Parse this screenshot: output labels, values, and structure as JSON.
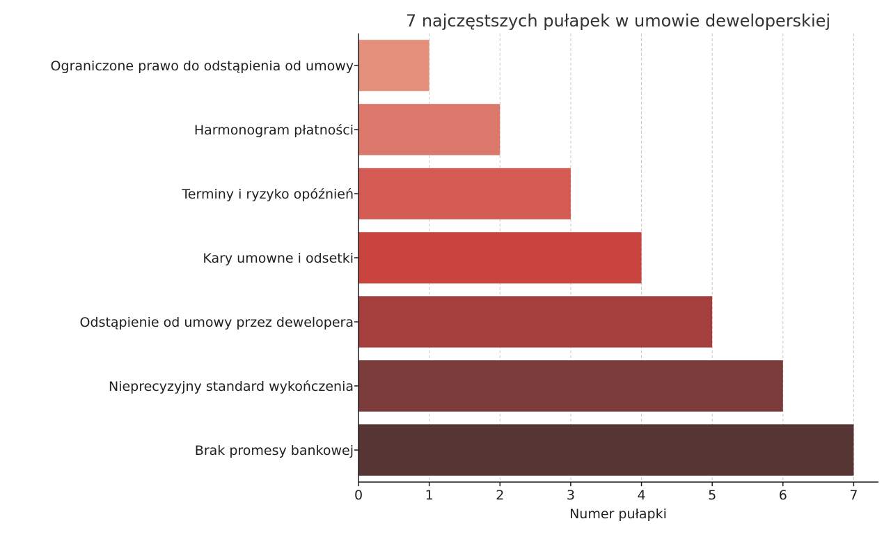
{
  "chart_data": {
    "type": "bar",
    "orientation": "horizontal",
    "title": "7 najczęstszych pułapek w umowie deweloperskiej",
    "xlabel": "Numer pułapki",
    "ylabel": "",
    "xlim": [
      0,
      7.35
    ],
    "xticks": [
      "0",
      "1",
      "2",
      "3",
      "4",
      "5",
      "6",
      "7"
    ],
    "grid": "vertical-dashed",
    "categories": [
      "Ograniczone prawo do odstąpienia od umowy",
      "Harmonogram płatności",
      "Terminy i ryzyko opóźnień",
      "Kary umowne i odsetki",
      "Odstąpienie od umowy przez dewelopera",
      "Nieprecyzyjny standard wykończenia",
      "Brak promesy bankowej"
    ],
    "values": [
      1,
      2,
      3,
      4,
      5,
      6,
      7
    ],
    "colors": [
      "#e48e7c",
      "#dc776b",
      "#d35b54",
      "#c8443d",
      "#a43f3e",
      "#7b3b3a",
      "#573535"
    ]
  }
}
